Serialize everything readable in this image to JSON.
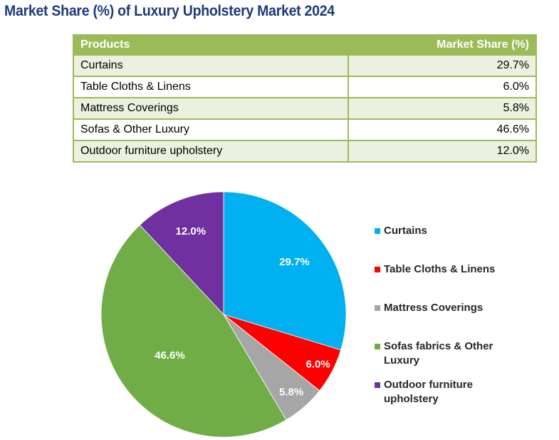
{
  "title": "Market Share (%) of Luxury Upholstery Market 2024",
  "table": {
    "headers": [
      "Products",
      "Market Share (%)"
    ],
    "rows": [
      {
        "product": "Curtains",
        "share": "29.7%"
      },
      {
        "product": "Table Cloths & Linens",
        "share": "6.0%"
      },
      {
        "product": "Mattress Coverings",
        "share": "5.8%"
      },
      {
        "product": "Sofas & Other Luxury",
        "share": "46.6%"
      },
      {
        "product": "Outdoor furniture upholstery",
        "share": "12.0%"
      }
    ]
  },
  "chart_data": {
    "type": "pie",
    "title": "",
    "slices": [
      {
        "name": "Curtains",
        "value": 29.7,
        "label": "29.7%",
        "color": "#00b0f0"
      },
      {
        "name": "Table Cloths & Linens",
        "value": 6.0,
        "label": "6.0%",
        "color": "#ff0000"
      },
      {
        "name": "Mattress Coverings",
        "value": 5.8,
        "label": "5.8%",
        "color": "#a6a6a6"
      },
      {
        "name": "Sofas fabrics & Other Luxury",
        "value": 46.6,
        "label": "46.6%",
        "color": "#70ad47"
      },
      {
        "name": "Outdoor furniture upholstery",
        "value": 12.0,
        "label": "12.0%",
        "color": "#7030a0"
      }
    ],
    "start": "12 o'clock",
    "direction": "clockwise",
    "legend_position": "right"
  },
  "colors": {
    "title": "#1f3a7a",
    "table_header": "#9bbb59",
    "table_band": "#ebf1de"
  }
}
